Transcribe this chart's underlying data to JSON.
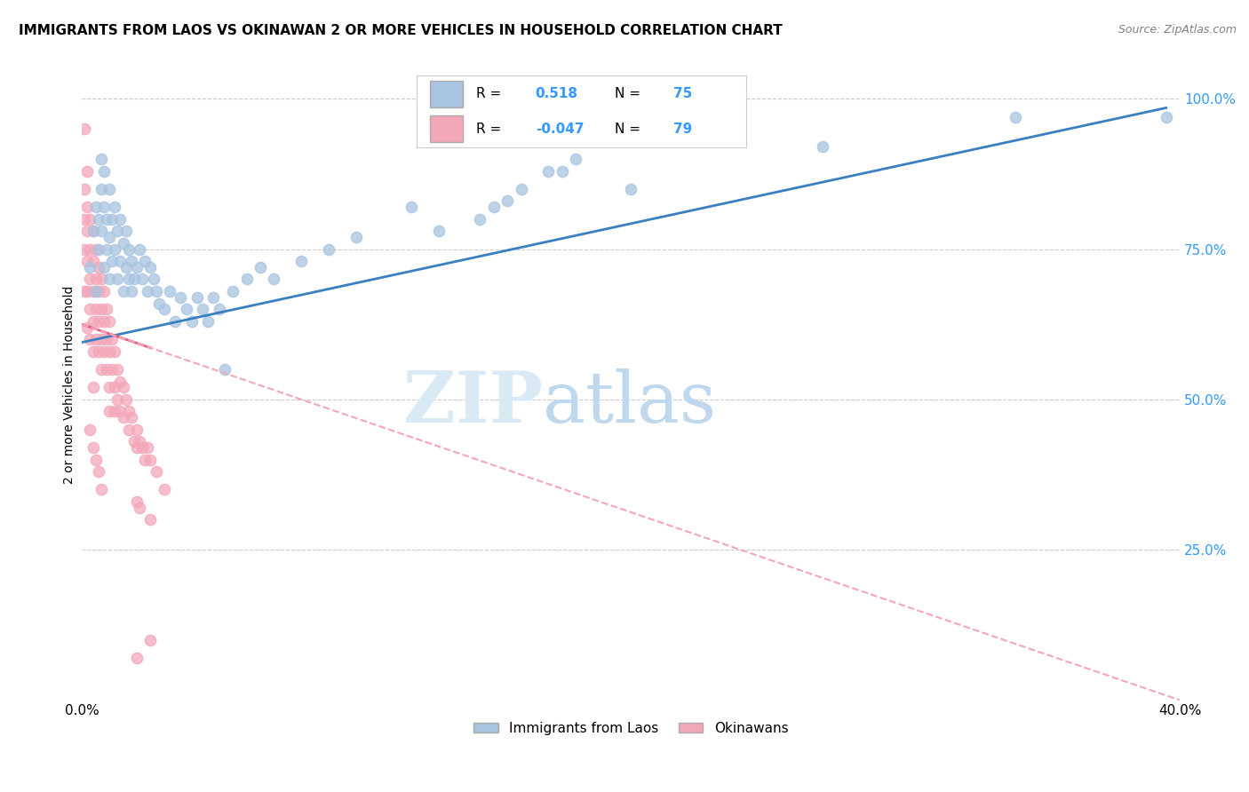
{
  "title": "IMMIGRANTS FROM LAOS VS OKINAWAN 2 OR MORE VEHICLES IN HOUSEHOLD CORRELATION CHART",
  "source": "Source: ZipAtlas.com",
  "ylabel": "2 or more Vehicles in Household",
  "xmin": 0.0,
  "xmax": 0.4,
  "ymin": 0.0,
  "ymax": 1.05,
  "xticks": [
    0.0,
    0.05,
    0.1,
    0.15,
    0.2,
    0.25,
    0.3,
    0.35,
    0.4
  ],
  "ytick_positions": [
    0.25,
    0.5,
    0.75,
    1.0
  ],
  "ytick_labels": [
    "25.0%",
    "50.0%",
    "75.0%",
    "100.0%"
  ],
  "blue_R": "0.518",
  "blue_N": "75",
  "pink_R": "-0.047",
  "pink_N": "79",
  "blue_color": "#a8c4e0",
  "pink_color": "#f4a7b9",
  "blue_line_color": "#3a7fc1",
  "pink_line_color": "#f4a7b9",
  "pink_solid_color": "#e06080",
  "legend_label_1": "Immigrants from Laos",
  "legend_label_2": "Okinawans",
  "watermark_zip": "ZIP",
  "watermark_atlas": "atlas",
  "title_fontsize": 11,
  "source_fontsize": 9,
  "blue_scatter_x": [
    0.003,
    0.004,
    0.005,
    0.005,
    0.006,
    0.006,
    0.007,
    0.007,
    0.007,
    0.008,
    0.008,
    0.008,
    0.009,
    0.009,
    0.01,
    0.01,
    0.01,
    0.011,
    0.011,
    0.012,
    0.012,
    0.013,
    0.013,
    0.014,
    0.014,
    0.015,
    0.015,
    0.016,
    0.016,
    0.017,
    0.017,
    0.018,
    0.018,
    0.019,
    0.02,
    0.021,
    0.022,
    0.023,
    0.024,
    0.025,
    0.026,
    0.027,
    0.028,
    0.03,
    0.032,
    0.034,
    0.036,
    0.038,
    0.04,
    0.042,
    0.044,
    0.046,
    0.048,
    0.05,
    0.055,
    0.06,
    0.065,
    0.07,
    0.08,
    0.09,
    0.1,
    0.12,
    0.15,
    0.17,
    0.2,
    0.27,
    0.34,
    0.13,
    0.145,
    0.155,
    0.16,
    0.175,
    0.18,
    0.052,
    0.395
  ],
  "blue_scatter_y": [
    0.72,
    0.78,
    0.82,
    0.68,
    0.8,
    0.75,
    0.85,
    0.78,
    0.9,
    0.72,
    0.82,
    0.88,
    0.75,
    0.8,
    0.7,
    0.77,
    0.85,
    0.73,
    0.8,
    0.75,
    0.82,
    0.7,
    0.78,
    0.73,
    0.8,
    0.68,
    0.76,
    0.72,
    0.78,
    0.7,
    0.75,
    0.68,
    0.73,
    0.7,
    0.72,
    0.75,
    0.7,
    0.73,
    0.68,
    0.72,
    0.7,
    0.68,
    0.66,
    0.65,
    0.68,
    0.63,
    0.67,
    0.65,
    0.63,
    0.67,
    0.65,
    0.63,
    0.67,
    0.65,
    0.68,
    0.7,
    0.72,
    0.7,
    0.73,
    0.75,
    0.77,
    0.82,
    0.82,
    0.88,
    0.85,
    0.92,
    0.97,
    0.78,
    0.8,
    0.83,
    0.85,
    0.88,
    0.9,
    0.55,
    0.97
  ],
  "pink_scatter_x": [
    0.001,
    0.001,
    0.001,
    0.001,
    0.001,
    0.002,
    0.002,
    0.002,
    0.002,
    0.002,
    0.002,
    0.003,
    0.003,
    0.003,
    0.003,
    0.003,
    0.004,
    0.004,
    0.004,
    0.004,
    0.004,
    0.004,
    0.005,
    0.005,
    0.005,
    0.005,
    0.006,
    0.006,
    0.006,
    0.006,
    0.007,
    0.007,
    0.007,
    0.007,
    0.008,
    0.008,
    0.008,
    0.009,
    0.009,
    0.009,
    0.01,
    0.01,
    0.01,
    0.01,
    0.011,
    0.011,
    0.012,
    0.012,
    0.012,
    0.013,
    0.013,
    0.014,
    0.014,
    0.015,
    0.015,
    0.016,
    0.017,
    0.017,
    0.018,
    0.019,
    0.02,
    0.02,
    0.021,
    0.022,
    0.023,
    0.024,
    0.025,
    0.027,
    0.03,
    0.02,
    0.021,
    0.025,
    0.003,
    0.004,
    0.005,
    0.006,
    0.007,
    0.025,
    0.02
  ],
  "pink_scatter_y": [
    0.95,
    0.85,
    0.8,
    0.75,
    0.68,
    0.88,
    0.82,
    0.78,
    0.73,
    0.68,
    0.62,
    0.8,
    0.75,
    0.7,
    0.65,
    0.6,
    0.78,
    0.73,
    0.68,
    0.63,
    0.58,
    0.52,
    0.75,
    0.7,
    0.65,
    0.6,
    0.72,
    0.68,
    0.63,
    0.58,
    0.7,
    0.65,
    0.6,
    0.55,
    0.68,
    0.63,
    0.58,
    0.65,
    0.6,
    0.55,
    0.63,
    0.58,
    0.52,
    0.48,
    0.6,
    0.55,
    0.58,
    0.52,
    0.48,
    0.55,
    0.5,
    0.53,
    0.48,
    0.52,
    0.47,
    0.5,
    0.48,
    0.45,
    0.47,
    0.43,
    0.45,
    0.42,
    0.43,
    0.42,
    0.4,
    0.42,
    0.4,
    0.38,
    0.35,
    0.33,
    0.32,
    0.3,
    0.45,
    0.42,
    0.4,
    0.38,
    0.35,
    0.1,
    0.07
  ],
  "blue_trend_x": [
    0.0,
    0.395
  ],
  "blue_trend_y": [
    0.595,
    0.985
  ],
  "pink_trend_x": [
    0.0,
    0.4
  ],
  "pink_trend_y": [
    0.625,
    0.0
  ]
}
